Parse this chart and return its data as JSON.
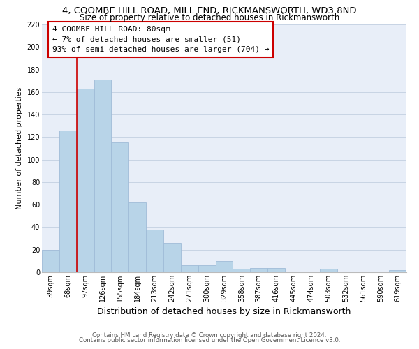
{
  "title_line1": "4, COOMBE HILL ROAD, MILL END, RICKMANSWORTH, WD3 8ND",
  "title_line2": "Size of property relative to detached houses in Rickmansworth",
  "xlabel": "Distribution of detached houses by size in Rickmansworth",
  "ylabel": "Number of detached properties",
  "categories": [
    "39sqm",
    "68sqm",
    "97sqm",
    "126sqm",
    "155sqm",
    "184sqm",
    "213sqm",
    "242sqm",
    "271sqm",
    "300sqm",
    "329sqm",
    "358sqm",
    "387sqm",
    "416sqm",
    "445sqm",
    "474sqm",
    "503sqm",
    "532sqm",
    "561sqm",
    "590sqm",
    "619sqm"
  ],
  "values": [
    20,
    126,
    163,
    171,
    115,
    62,
    38,
    26,
    6,
    6,
    10,
    3,
    4,
    4,
    0,
    0,
    3,
    0,
    0,
    0,
    2
  ],
  "bar_color": "#b8d4e8",
  "bar_edge_color": "#a0bcd8",
  "annotation_box_text": "4 COOMBE HILL ROAD: 80sqm\n← 7% of detached houses are smaller (51)\n93% of semi-detached houses are larger (704) →",
  "ref_line_color": "#cc0000",
  "ylim": [
    0,
    220
  ],
  "yticks": [
    0,
    20,
    40,
    60,
    80,
    100,
    120,
    140,
    160,
    180,
    200,
    220
  ],
  "footnote1": "Contains HM Land Registry data © Crown copyright and database right 2024.",
  "footnote2": "Contains public sector information licensed under the Open Government Licence v3.0.",
  "background_color": "#ffffff",
  "plot_bg_color": "#e8eef8",
  "grid_color": "#c8d4e4",
  "title_fontsize": 9.5,
  "subtitle_fontsize": 8.5,
  "xlabel_fontsize": 9,
  "ylabel_fontsize": 8,
  "tick_fontsize": 7,
  "annot_fontsize": 8,
  "footnote_fontsize": 6.2
}
